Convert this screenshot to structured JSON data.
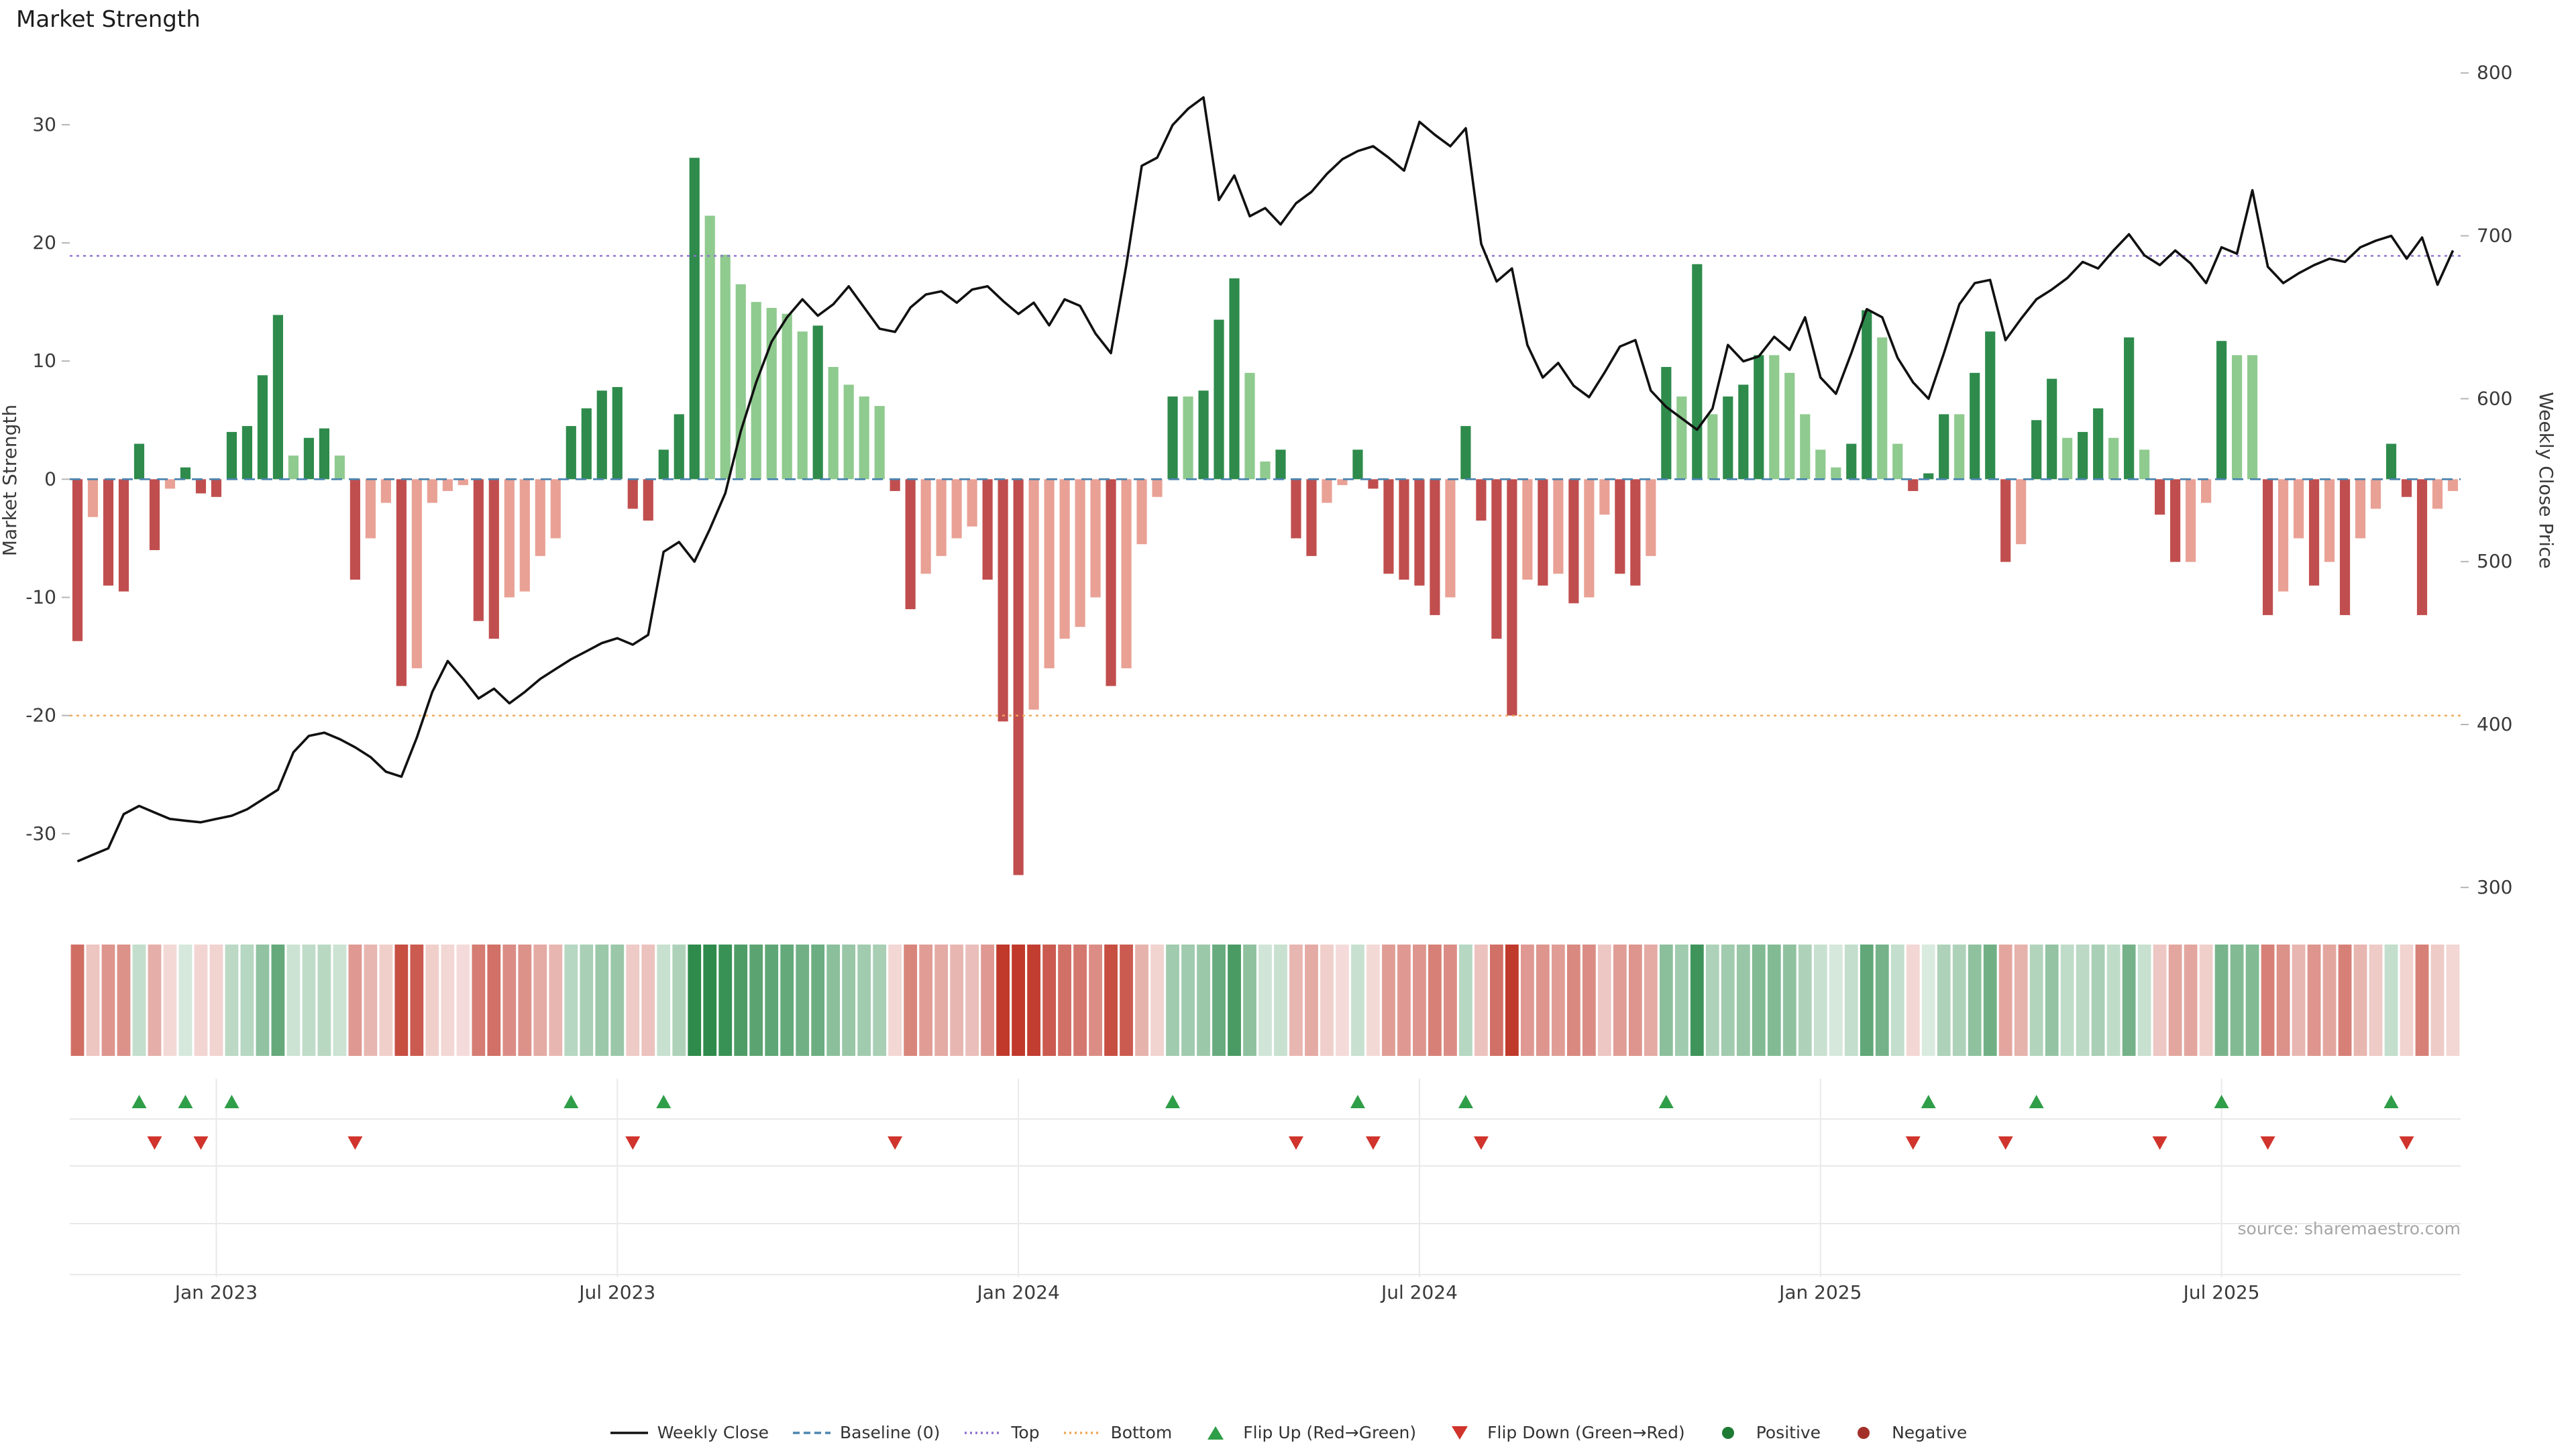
{
  "page": {
    "title": "Market Strength",
    "source": "source: sharemaestro.com"
  },
  "chart_data": {
    "type": "bar",
    "subtype": "weekly strength bars + weekly close price line overlay + heat strip + flip markers",
    "title": "Market Strength",
    "x_axis": {
      "tick_labels": [
        "Jan 2023",
        "Jul 2023",
        "Jan 2024",
        "Jul 2024",
        "Jan 2025",
        "Jul 2025"
      ],
      "tick_week_indices": [
        9,
        35,
        61,
        87,
        113,
        139
      ],
      "n_weeks": 155
    },
    "left_axis": {
      "label": "Market Strength",
      "ticks": [
        30,
        20,
        10,
        0,
        -10,
        -20,
        -30
      ],
      "range": [
        -36.2,
        35.9
      ]
    },
    "right_axis": {
      "label": "Weekly Close Price",
      "ticks": [
        800,
        700,
        600,
        500,
        400,
        300
      ],
      "range": [
        288,
        811
      ]
    },
    "reference_lines": {
      "baseline": 0,
      "top": 18.9,
      "bottom": -20
    },
    "series": [
      {
        "name": "Market Strength",
        "type": "bar",
        "axis": "left",
        "values": [
          -13.7,
          -3.2,
          -9,
          -9.5,
          3,
          -6,
          -0.8,
          1,
          -1.2,
          -1.5,
          4,
          4.5,
          8.8,
          13.9,
          2,
          3.5,
          4.3,
          2,
          -8.5,
          -5,
          -2,
          -17.5,
          -16,
          -2,
          -1,
          -0.5,
          -12,
          -13.5,
          -10,
          -9.5,
          -6.5,
          -5,
          4.5,
          6,
          7.5,
          7.8,
          -2.5,
          -3.5,
          2.5,
          5.5,
          27.2,
          22.3,
          19,
          16.5,
          15,
          14.5,
          14,
          12.5,
          13,
          9.5,
          8,
          7,
          6.2,
          -1,
          -11,
          -8,
          -6.5,
          -5,
          -4,
          -8.5,
          -20.5,
          -33.5,
          -19.5,
          -16,
          -13.5,
          -12.5,
          -10,
          -17.5,
          -16,
          -5.5,
          -1.5,
          7,
          7,
          7.5,
          13.5,
          17,
          9,
          1.5,
          2.5,
          -5,
          -6.5,
          -2,
          -0.5,
          2.5,
          -0.8,
          -8,
          -8.5,
          -9,
          -11.5,
          -10,
          4.5,
          -3.5,
          -13.5,
          -20,
          -8.5,
          -9,
          -8,
          -10.5,
          -10,
          -3,
          -8,
          -9,
          -6.5,
          9.5,
          7,
          18.2,
          5.5,
          7,
          8,
          10.5,
          10.5,
          9,
          5.5,
          2.5,
          1,
          3,
          14.3,
          12,
          3,
          -1,
          0.5,
          5.5,
          5.5,
          9,
          12.5,
          -7,
          -5.5,
          5,
          8.5,
          3.5,
          4,
          6,
          3.5,
          12,
          2.5,
          -3,
          -7,
          -7,
          -2,
          11.7,
          10.5,
          10.5,
          -11.5,
          -9.5,
          -5,
          -9,
          -7,
          -11.5,
          -5,
          -2.5,
          3,
          -1.5,
          -11.5,
          -2.5,
          -1
        ]
      },
      {
        "name": "Weekly Close",
        "type": "line",
        "axis": "right",
        "values": [
          316,
          320,
          324,
          345,
          350,
          346,
          342,
          341,
          340,
          342,
          344,
          348,
          354,
          360,
          383,
          393,
          395,
          391,
          386,
          380,
          371,
          368,
          392,
          420,
          439,
          428,
          416,
          422,
          413,
          420,
          428,
          434,
          440,
          445,
          450,
          453,
          449,
          455,
          506,
          512,
          500,
          520,
          542,
          580,
          610,
          635,
          650,
          661,
          651,
          658,
          669,
          656,
          643,
          641,
          656,
          664,
          666,
          659,
          667,
          669,
          660,
          652,
          659,
          645,
          661,
          657,
          640,
          628,
          682,
          743,
          748,
          768,
          778,
          785,
          722,
          737,
          712,
          717,
          707,
          720,
          727,
          738,
          747,
          752,
          755,
          748,
          740,
          770,
          762,
          755,
          766,
          695,
          672,
          680,
          633,
          613,
          622,
          608,
          601,
          616,
          632,
          636,
          605,
          595,
          588,
          581,
          594,
          633,
          623,
          626,
          638,
          630,
          650,
          613,
          603,
          628,
          655,
          650,
          625,
          610,
          600,
          628,
          658,
          671,
          673,
          636,
          649,
          661,
          667,
          674,
          684,
          680,
          691,
          701,
          688,
          682,
          691,
          683,
          671,
          693,
          689,
          728,
          681,
          671,
          677,
          682,
          686,
          684,
          693,
          697,
          700,
          686,
          699,
          670,
          691
        ]
      }
    ],
    "heatmap": {
      "description": "one cell per week; green shade for positive strength, red shade for negative, intensity scales with magnitude"
    },
    "markers": {
      "flip_up_rule": "strength crosses from negative to positive",
      "flip_down_rule": "strength crosses from positive to negative"
    },
    "legend": [
      {
        "key": "weekly-close",
        "label": "Weekly Close",
        "swatch": "line",
        "color": "#111111"
      },
      {
        "key": "baseline",
        "label": "Baseline (0)",
        "swatch": "dash",
        "color": "#4d85b0"
      },
      {
        "key": "top",
        "label": "Top",
        "swatch": "dots",
        "color": "#8f6fd0"
      },
      {
        "key": "bottom",
        "label": "Bottom",
        "swatch": "dots",
        "color": "#f0a656"
      },
      {
        "key": "flip-up",
        "label": "Flip Up (Red→Green)",
        "swatch": "tri-up",
        "color": "#2f9e48"
      },
      {
        "key": "flip-down",
        "label": "Flip Down (Green→Red)",
        "swatch": "tri-down",
        "color": "#d0342c"
      },
      {
        "key": "positive",
        "label": "Positive",
        "swatch": "dot",
        "color": "#1e7b34"
      },
      {
        "key": "negative",
        "label": "Negative",
        "swatch": "dot",
        "color": "#a33028"
      }
    ],
    "colors": {
      "bar_positive_dark": "#2e8b4c",
      "bar_positive_light": "#8fca8f",
      "bar_negative_dark": "#c14e4e",
      "bar_negative_light": "#e9a195",
      "line": "#111111",
      "baseline": "#4d85b0",
      "top_line": "#8f6fd0",
      "bottom_line": "#f0a656",
      "flip_up": "#2f9e48",
      "flip_down": "#d0342c",
      "heat_positive": "#2e8b4c",
      "heat_negative": "#c0392b"
    }
  }
}
